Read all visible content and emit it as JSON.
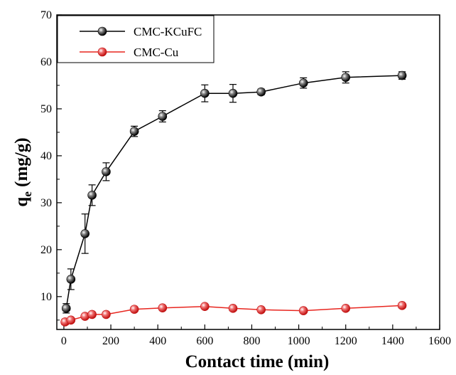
{
  "chart_data": {
    "type": "line",
    "xlabel": "Contact  time (min)",
    "ylabel_main": "q",
    "ylabel_sub": "e",
    "ylabel_unit": " (mg/g)",
    "xlim": [
      -30,
      1600
    ],
    "ylim": [
      3,
      70
    ],
    "xticks": [
      0,
      200,
      400,
      600,
      800,
      1000,
      1200,
      1400,
      1600
    ],
    "yticks": [
      10,
      20,
      30,
      40,
      50,
      60,
      70
    ],
    "legend_position": "top-left",
    "grid": false,
    "series": [
      {
        "name": "CMC-KCuFC",
        "color": "#000000",
        "marker": "black-sphere",
        "x": [
          10,
          30,
          90,
          120,
          180,
          300,
          420,
          600,
          720,
          840,
          1020,
          1200,
          1440
        ],
        "y": [
          7.5,
          13.7,
          23.4,
          31.6,
          36.6,
          45.2,
          48.4,
          53.3,
          53.3,
          53.6,
          55.5,
          56.7,
          57.1
        ],
        "err": [
          1.0,
          2.2,
          4.2,
          2.2,
          1.9,
          1.1,
          1.2,
          1.8,
          1.9,
          0.6,
          1.1,
          1.2,
          0.8
        ]
      },
      {
        "name": "CMC-Cu",
        "color": "#e8261f",
        "marker": "red-sphere",
        "x": [
          5,
          30,
          90,
          120,
          180,
          300,
          420,
          600,
          720,
          840,
          1020,
          1200,
          1440
        ],
        "y": [
          4.6,
          5.0,
          5.8,
          6.2,
          6.2,
          7.3,
          7.6,
          7.9,
          7.5,
          7.2,
          7.0,
          7.5,
          8.1
        ],
        "err": [
          0.6,
          0.3,
          0.3,
          0.3,
          0.3,
          0.3,
          0.3,
          0.3,
          0.3,
          0.3,
          0.3,
          0.3,
          0.3
        ]
      }
    ]
  }
}
